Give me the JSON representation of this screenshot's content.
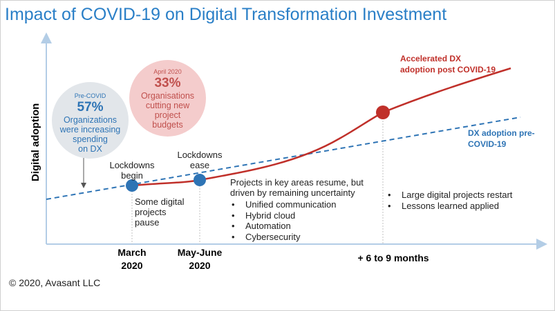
{
  "title": "Impact of COVID-19 on Digital Transformation Investment",
  "copyright": "© 2020, Avasant LLC",
  "colors": {
    "accelerated": "#c0302a",
    "pre_covid": "#2e74b5",
    "title": "#2a7fc7"
  },
  "callouts": {
    "pre_covid": {
      "top": "Pre-COVID",
      "value": "57%",
      "text": [
        "Organizations",
        "were increasing",
        "spending",
        "on DX"
      ]
    },
    "april_2020": {
      "top": "April 2020",
      "value": "33%",
      "text": [
        "Organisations",
        "cutting new",
        "project",
        "budgets"
      ]
    }
  },
  "events": {
    "lockdowns_begin": [
      "Lockdowns",
      "begin"
    ],
    "lockdowns_ease": [
      "Lockdowns",
      "ease"
    ],
    "some_digital": [
      "Some digital",
      "projects",
      "pause"
    ],
    "resume_text": [
      "Projects in key areas resume, but",
      "driven by remaining uncertainty"
    ],
    "resume_bullets": [
      "Unified communication",
      "Hybrid cloud",
      "Automation",
      "Cybersecurity"
    ],
    "restart_bullets": [
      "Large digital projects restart",
      "Lessons learned applied"
    ]
  },
  "chart_data": {
    "type": "line",
    "ylabel": "Digital adoption",
    "xlabel": "",
    "x_ticks": [
      {
        "lines": [
          "March",
          "2020"
        ]
      },
      {
        "lines": [
          "May-June",
          "2020"
        ]
      },
      {
        "lines": [
          "+ 6 to 9 months"
        ]
      }
    ],
    "series": [
      {
        "name": "Accelerated DX adoption post COVID-19",
        "style": "solid",
        "marked_points": [
          "March 2020",
          "May-June 2020",
          "+ 6 to 9 months"
        ]
      },
      {
        "name": "DX adoption pre-COVID-19",
        "style": "dashed"
      }
    ],
    "grid": false
  }
}
